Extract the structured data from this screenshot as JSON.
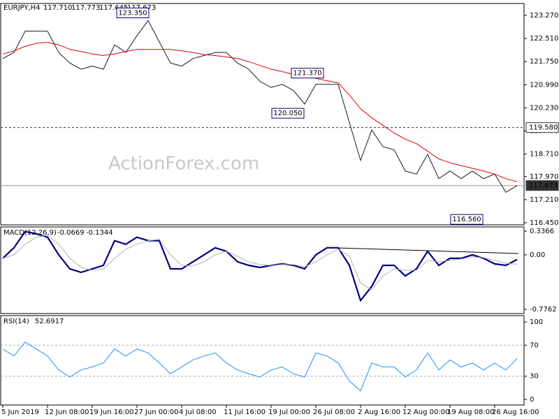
{
  "header": {
    "symbol": "EURJPY,H4",
    "ohlc": [
      {
        "value": 117.71,
        "label": "117.710"
      },
      {
        "value": 117.773,
        "label": "117.773"
      },
      {
        "value": 117.645,
        "label": "117.645"
      },
      {
        "value": 117.673,
        "label": "117.673"
      }
    ]
  },
  "watermark": "ActionForex.com",
  "chart_data": [
    {
      "type": "line",
      "name": "price",
      "categories": [
        "5 Jun 2019",
        null,
        null,
        null,
        "12 Jun 08:00",
        null,
        null,
        null,
        "19 Jun 16:00",
        null,
        null,
        null,
        "27 Jun 00:00",
        null,
        null,
        null,
        "4 Jul 08:00",
        null,
        null,
        null,
        "11 Jul 16:00",
        null,
        null,
        null,
        "19 Jul 00:00",
        null,
        null,
        null,
        "26 Jul 08:00",
        null,
        null,
        null,
        "2 Aug 16:00",
        null,
        null,
        null,
        "12 Aug 00:00",
        null,
        null,
        null,
        "19 Aug 08:00",
        null,
        null,
        null,
        "26 Aug 16:00",
        null,
        null
      ],
      "series": [
        {
          "color": "#1a1a2e",
          "values": [
            121.85,
            122.05,
            122.75,
            122.75,
            122.75,
            122.05,
            121.7,
            121.5,
            121.6,
            121.5,
            122.3,
            122.05,
            122.6,
            123.1,
            122.4,
            121.7,
            121.6,
            121.85,
            121.95,
            122.05,
            122.05,
            121.7,
            121.5,
            121.1,
            120.9,
            121.0,
            120.8,
            120.35,
            121.0,
            121.0,
            121.0,
            119.75,
            118.5,
            119.5,
            118.95,
            118.85,
            118.15,
            118.05,
            118.7,
            117.9,
            118.15,
            117.9,
            118.15,
            117.9,
            118.05,
            117.45,
            117.673
          ]
        },
        {
          "color": "#e00000",
          "values": [
            122.0,
            122.1,
            122.25,
            122.35,
            122.38,
            122.3,
            122.15,
            122.08,
            122.0,
            121.95,
            122.0,
            122.08,
            122.15,
            122.15,
            122.15,
            122.15,
            122.1,
            122.05,
            121.98,
            121.95,
            121.9,
            121.85,
            121.75,
            121.62,
            121.5,
            121.42,
            121.33,
            121.25,
            121.2,
            121.12,
            121.05,
            120.65,
            120.2,
            119.9,
            119.65,
            119.4,
            119.2,
            119.05,
            118.8,
            118.55,
            118.42,
            118.33,
            118.24,
            118.15,
            118.05,
            117.9,
            117.8
          ]
        }
      ],
      "ylim": [
        116.38,
        123.66
      ],
      "yticks": [
        {
          "value": 123.27,
          "label": "123.270"
        },
        {
          "value": 122.51,
          "label": "122.510"
        },
        {
          "value": 121.75,
          "label": "121.750"
        },
        {
          "value": 120.99,
          "label": "120.990"
        },
        {
          "value": 120.23,
          "label": "120.230"
        },
        {
          "value": 119.47,
          "label": "119.470"
        },
        {
          "value": 118.71,
          "label": "118.710"
        },
        {
          "value": 117.97,
          "label": "117.970"
        },
        {
          "value": 117.21,
          "label": "117.210"
        },
        {
          "value": 116.45,
          "label": "116.450"
        }
      ],
      "levels": [
        {
          "value": 119.58,
          "label": "119.580",
          "style": "dashed"
        },
        {
          "value": 117.673,
          "style": "solid"
        }
      ],
      "annotations": [
        {
          "value": 123.35,
          "label": "123.350"
        },
        {
          "value": 121.37,
          "label": "121.370"
        },
        {
          "value": 120.05,
          "label": "120.050"
        },
        {
          "value": 116.56,
          "label": "116.560"
        }
      ]
    },
    {
      "type": "line",
      "name": "MACD(12,26,9)",
      "last": [
        -0.0669,
        -0.1344
      ],
      "series": [
        {
          "color": "#000080",
          "values": [
            -0.05,
            0.1,
            0.33,
            0.3,
            0.25,
            0,
            -0.2,
            -0.25,
            -0.2,
            -0.15,
            0.2,
            0.15,
            0.25,
            0.2,
            0.2,
            -0.2,
            -0.2,
            -0.1,
            0,
            0.1,
            0.05,
            -0.1,
            -0.15,
            -0.18,
            -0.15,
            -0.13,
            -0.15,
            -0.2,
            0,
            0.1,
            0.1,
            -0.15,
            -0.65,
            -0.45,
            -0.15,
            -0.15,
            -0.3,
            -0.2,
            0.05,
            -0.15,
            -0.05,
            -0.05,
            0,
            -0.05,
            -0.13,
            -0.15,
            -0.0669
          ]
        },
        {
          "color": "#b0b0b0",
          "values": [
            -0.05,
            0.0,
            0.15,
            0.25,
            0.28,
            0.15,
            -0.05,
            -0.18,
            -0.22,
            -0.2,
            -0.05,
            0.08,
            0.15,
            0.2,
            0.22,
            0.0,
            -0.15,
            -0.16,
            -0.1,
            0.0,
            0.05,
            -0.02,
            -0.1,
            -0.14,
            -0.15,
            -0.14,
            -0.14,
            -0.17,
            -0.1,
            0.0,
            0.08,
            -0.02,
            -0.4,
            -0.5,
            -0.3,
            -0.2,
            -0.22,
            -0.22,
            -0.08,
            -0.1,
            -0.08,
            -0.06,
            -0.03,
            -0.04,
            -0.08,
            -0.12,
            -0.1344
          ]
        }
      ],
      "ylim": [
        -0.836,
        0.396
      ],
      "yticks": [
        0.3366,
        {
          "value": 0,
          "label": "0.00"
        },
        -0.7762
      ]
    },
    {
      "type": "line",
      "name": "RSI(14)",
      "last": 52.6917,
      "series": [
        {
          "color": "#1e90ff",
          "values": [
            65,
            56,
            74,
            65,
            56,
            38,
            29,
            38,
            42,
            47,
            65,
            56,
            65,
            60,
            47,
            33,
            42,
            51,
            56,
            60,
            47,
            38,
            33,
            29,
            38,
            42,
            33,
            29,
            60,
            56,
            47,
            24,
            11,
            47,
            42,
            42,
            29,
            38,
            60,
            38,
            51,
            42,
            47,
            38,
            47,
            38,
            52.6917
          ]
        }
      ],
      "ylim": [
        -7.2,
        108.1
      ],
      "yticks": [
        100,
        70,
        30,
        0
      ],
      "dashed_levels": [
        70,
        30
      ]
    }
  ]
}
